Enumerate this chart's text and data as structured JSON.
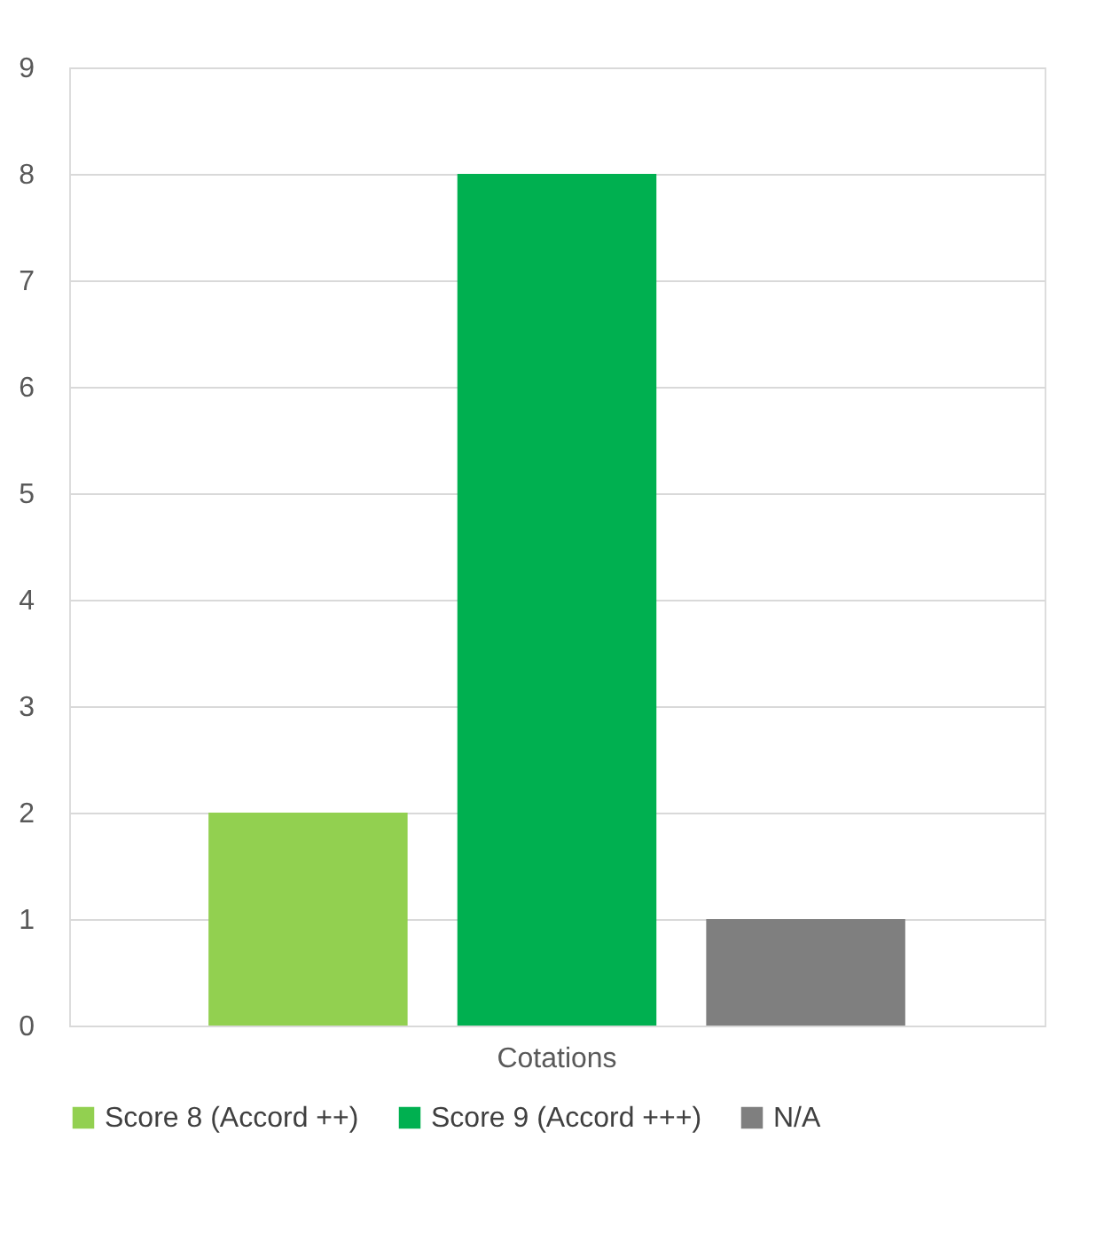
{
  "chart_data": {
    "type": "bar",
    "categories": [
      "Cotations"
    ],
    "series": [
      {
        "name": "Score 8 (Accord ++)",
        "color": "#92d050",
        "values": [
          2
        ]
      },
      {
        "name": "Score 9 (Accord +++)",
        "color": "#00b050",
        "values": [
          8
        ]
      },
      {
        "name": "N/A",
        "color": "#7f7f7f",
        "values": [
          1
        ]
      }
    ],
    "ylim": [
      0,
      9
    ],
    "yticks": [
      0,
      1,
      2,
      3,
      4,
      5,
      6,
      7,
      8,
      9
    ],
    "grid": "y",
    "legend": "bottom"
  }
}
